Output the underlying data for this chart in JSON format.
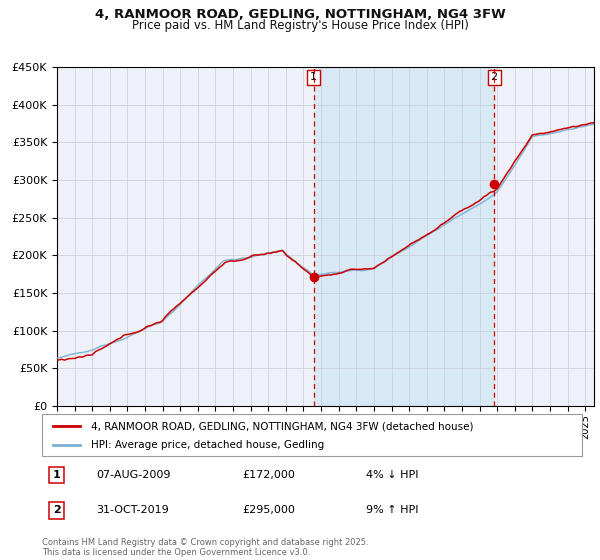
{
  "title_line1": "4, RANMOOR ROAD, GEDLING, NOTTINGHAM, NG4 3FW",
  "title_line2": "Price paid vs. HM Land Registry's House Price Index (HPI)",
  "ylim": [
    0,
    450000
  ],
  "yticks": [
    0,
    50000,
    100000,
    150000,
    200000,
    250000,
    300000,
    350000,
    400000,
    450000
  ],
  "ytick_labels": [
    "£0",
    "£50K",
    "£100K",
    "£150K",
    "£200K",
    "£250K",
    "£300K",
    "£350K",
    "£400K",
    "£450K"
  ],
  "sale1_date_num": 2009.58,
  "sale1_price": 172000,
  "sale1_label": "07-AUG-2009",
  "sale1_price_str": "£172,000",
  "sale1_pct": "4% ↓ HPI",
  "sale2_date_num": 2019.83,
  "sale2_price": 295000,
  "sale2_label": "31-OCT-2019",
  "sale2_price_str": "£295,000",
  "sale2_pct": "9% ↑ HPI",
  "legend_red": "4, RANMOOR ROAD, GEDLING, NOTTINGHAM, NG4 3FW (detached house)",
  "legend_blue": "HPI: Average price, detached house, Gedling",
  "red_color": "#cc0000",
  "blue_color": "#7ab0d4",
  "bg_color": "#ffffff",
  "plot_bg": "#eef2f8",
  "grid_color": "#c8ccd8",
  "shade_color": "#d8e8f4",
  "footnote": "Contains HM Land Registry data © Crown copyright and database right 2025.\nThis data is licensed under the Open Government Licence v3.0.",
  "xstart": 1995,
  "xend": 2025
}
